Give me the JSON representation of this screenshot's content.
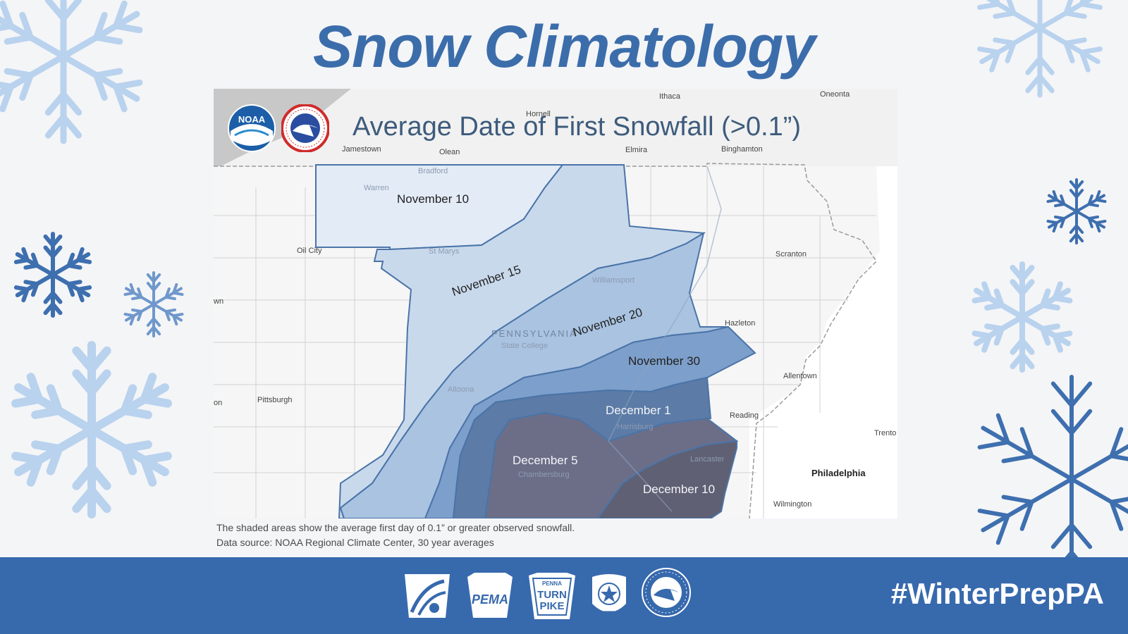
{
  "page": {
    "title": "Snow Climatology",
    "hashtag": "#WinterPrepPA"
  },
  "map": {
    "title": "Average Date of First Snowfall (>0.1”)",
    "state_label": "PENNSYLVANIA",
    "towns": [
      "Ithaca",
      "Oneonta",
      "Hornell",
      "Jamestown",
      "Olean",
      "Elmira",
      "Binghamton",
      "Bradford",
      "Warren",
      "St Marys",
      "Oil City",
      "Scranton",
      "Williamsport",
      "Hazleton",
      "State College",
      "Allentown",
      "Altoona",
      "Pittsburgh",
      "Reading",
      "Harrisburg",
      "Trento",
      "Lancaster",
      "Chambersburg",
      "Philadelphia",
      "Wilmington",
      "wn",
      "on"
    ],
    "zones": [
      {
        "label": "November 10",
        "color": "#e3ebf6"
      },
      {
        "label": "November 15",
        "color": "#c9d9ec"
      },
      {
        "label": "November 20",
        "color": "#a9c3e1"
      },
      {
        "label": "November 30",
        "color": "#7d9fcb"
      },
      {
        "label": "December 1",
        "color": "#5c7ba6"
      },
      {
        "label": "December 5",
        "color": "#6c6e88"
      },
      {
        "label": "December 10",
        "color": "#5f6073"
      }
    ],
    "caption_line1": "The shaded areas show the average first day of 0.1” or greater observed snowfall.",
    "caption_line2": "Data source: NOAA Regional Climate Center, 30 year averages"
  },
  "logos": {
    "noaa": "NOAA",
    "nws_ring": "NATIONAL WEATHER SERVICE",
    "pema": "PEMA",
    "turnpike_top": "PENNA",
    "turnpike_line1": "TURN",
    "turnpike_line2": "PIKE",
    "police_ring": "PENNSYLVANIA STATE POLICE",
    "police_bottom": "TROOPER",
    "nws_footer_ring": "NATIONAL WEATHER SERVICE"
  },
  "icons": [
    "snowflake-icon",
    "noaa-logo-icon",
    "nws-logo-icon",
    "penndot-logo-icon",
    "pema-logo-icon",
    "turnpike-logo-icon",
    "state-police-logo-icon"
  ],
  "colors": {
    "title": "#3c6dab",
    "footer": "#3769ad",
    "flake_light": "#b9d2ee",
    "flake_dark": "#3e6faf",
    "boundary": "#4a74a8"
  }
}
